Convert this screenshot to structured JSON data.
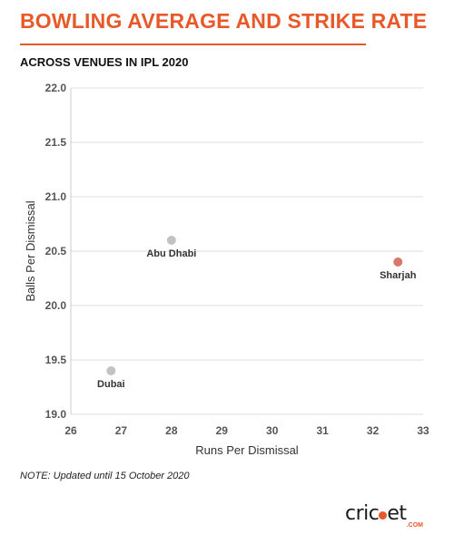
{
  "header": {
    "title": "BOWLING AVERAGE AND STRIKE RATE",
    "subtitle": "ACROSS VENUES IN IPL 2020"
  },
  "footer": {
    "note": "NOTE: Updated until 15 October 2020",
    "logo_text_pre": "cric",
    "logo_text_post": "et",
    "logo_sub": ".COM"
  },
  "colors": {
    "accent": "#e8592a",
    "highlight_point": "#d9776a",
    "point": "#c2c2c2",
    "grid": "#dddddd"
  },
  "chart_data": {
    "type": "scatter",
    "title": "BOWLING AVERAGE AND STRIKE RATE",
    "subtitle": "ACROSS VENUES IN IPL 2020",
    "xlabel": "Runs Per Dismissal",
    "ylabel": "Balls Per Dismissal",
    "xlim": [
      26,
      33
    ],
    "ylim": [
      19.0,
      22.0
    ],
    "xticks": [
      "26",
      "27",
      "28",
      "29",
      "30",
      "31",
      "32",
      "33"
    ],
    "yticks": [
      "19.0",
      "19.5",
      "20.0",
      "20.5",
      "21.0",
      "21.5",
      "22.0"
    ],
    "grid": "horizontal",
    "points": [
      {
        "label": "Abu Dhabi",
        "x": 28.0,
        "y": 20.6,
        "highlight": false
      },
      {
        "label": "Sharjah",
        "x": 32.5,
        "y": 20.4,
        "highlight": true
      },
      {
        "label": "Dubai",
        "x": 26.8,
        "y": 19.4,
        "highlight": false
      }
    ]
  }
}
